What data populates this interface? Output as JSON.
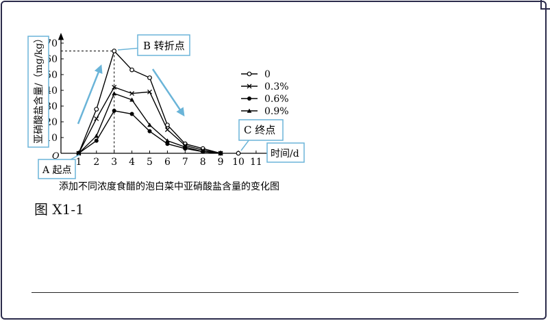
{
  "figure_label": "图 X1-1",
  "chart_data": {
    "type": "line",
    "title": "添加不同浓度食醋的泡白菜中亚硝酸盐含量的变化图",
    "xlabel": "时间/d",
    "ylabel": "亚硝酸盐含量/（mg/kg）",
    "origin_label": "O",
    "x": [
      1,
      2,
      3,
      4,
      5,
      6,
      7,
      8,
      9,
      10,
      11
    ],
    "xlim": [
      0,
      11
    ],
    "ylim": [
      0,
      70
    ],
    "yticks": [
      10,
      20,
      30,
      40,
      50,
      60,
      70
    ],
    "grid": false,
    "legend_position": "right",
    "series": [
      {
        "name": "0",
        "marker": "open-circle",
        "x": [
          1,
          2,
          3,
          4,
          5,
          6,
          7,
          8,
          9
        ],
        "values": [
          0,
          28,
          65,
          53,
          48,
          18,
          6,
          3,
          0
        ]
      },
      {
        "name": "0.3%",
        "marker": "cross",
        "x": [
          1,
          2,
          3,
          4,
          5,
          6,
          7,
          8,
          9
        ],
        "values": [
          0,
          22,
          42,
          38,
          39,
          15,
          5,
          2,
          0
        ]
      },
      {
        "name": "0.6%",
        "marker": "filled-circle",
        "x": [
          1,
          2,
          3,
          4,
          5,
          6,
          7,
          8,
          9
        ],
        "values": [
          0,
          8,
          27,
          25,
          14,
          6,
          3,
          1,
          0
        ]
      },
      {
        "name": "0.9%",
        "marker": "triangle",
        "x": [
          1,
          2,
          3,
          4,
          5,
          6,
          7,
          8,
          9
        ],
        "values": [
          0,
          11,
          38,
          34,
          18,
          8,
          4,
          1,
          0
        ]
      }
    ],
    "extra_points": [
      {
        "x": 10,
        "y": 0,
        "marker": "open-circle"
      }
    ],
    "annotations": [
      {
        "text": "B 转折点",
        "x": 3,
        "y": 65
      },
      {
        "text": "C 终点",
        "x": 10,
        "y": 0
      },
      {
        "text": "A 起点",
        "x": 1,
        "y": 0
      }
    ],
    "accent_color": "#6ab4d8"
  }
}
